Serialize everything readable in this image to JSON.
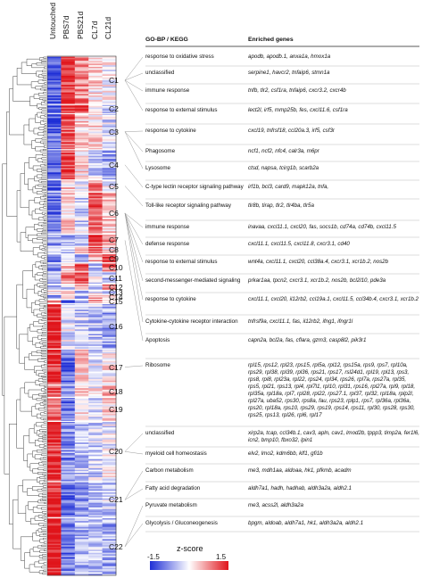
{
  "chart_data": {
    "type": "heatmap",
    "columns": [
      "Untouched",
      "PBS7d",
      "PBS21d",
      "CL7d",
      "CL21d"
    ],
    "value_range": [
      -1.5,
      1.5
    ],
    "colorscale": {
      "low": "#1f2fd6",
      "mid": "#ffffff",
      "high": "#e0141b"
    },
    "clusters": [
      {
        "name": "C1",
        "rows": 32,
        "profile": [
          -1.2,
          1.2,
          0.8,
          0.2,
          0.0
        ]
      },
      {
        "name": "C2",
        "rows": 6,
        "profile": [
          -1.3,
          1.3,
          1.0,
          0.1,
          -0.4
        ]
      },
      {
        "name": "C3",
        "rows": 24,
        "profile": [
          -1.1,
          1.1,
          0.3,
          0.2,
          -0.3
        ]
      },
      {
        "name": "C4",
        "rows": 20,
        "profile": [
          -1.2,
          1.2,
          0.2,
          -0.3,
          -0.6
        ]
      },
      {
        "name": "C5",
        "rows": 8,
        "profile": [
          -1.0,
          0.3,
          -0.1,
          0.8,
          0.0
        ]
      },
      {
        "name": "C6",
        "rows": 28,
        "profile": [
          -1.0,
          0.2,
          -0.3,
          1.0,
          0.4
        ]
      },
      {
        "name": "C7",
        "rows": 8,
        "profile": [
          -0.7,
          -0.6,
          -0.3,
          1.4,
          0.6
        ]
      },
      {
        "name": "C8",
        "rows": 5,
        "profile": [
          -0.5,
          -0.5,
          0.9,
          1.2,
          0.2
        ]
      },
      {
        "name": "C9",
        "rows": 6,
        "profile": [
          -0.9,
          -0.3,
          -0.6,
          0.4,
          1.3
        ]
      },
      {
        "name": "C10",
        "rows": 6,
        "profile": [
          -0.8,
          0.4,
          1.1,
          -0.3,
          0.9
        ]
      },
      {
        "name": "C11",
        "rows": 8,
        "profile": [
          -0.6,
          0.8,
          1.1,
          -0.2,
          -0.6
        ]
      },
      {
        "name": "C12",
        "rows": 4,
        "profile": [
          -0.4,
          -0.2,
          0.6,
          -0.6,
          1.0
        ]
      },
      {
        "name": "C13",
        "rows": 3,
        "profile": [
          0.2,
          0.9,
          -0.8,
          0.0,
          -0.5
        ]
      },
      {
        "name": "C14",
        "rows": 3,
        "profile": [
          -0.8,
          0.4,
          -0.6,
          0.8,
          0.6
        ]
      },
      {
        "name": "C15",
        "rows": 3,
        "profile": [
          0.6,
          -1.0,
          -0.4,
          0.9,
          0.2
        ]
      },
      {
        "name": "C16",
        "rows": 30,
        "profile": [
          1.4,
          -0.2,
          -0.3,
          -0.4,
          -0.6
        ]
      },
      {
        "name": "C17",
        "rows": 24,
        "profile": [
          1.3,
          -1.0,
          0.3,
          -0.2,
          0.1
        ]
      },
      {
        "name": "C18",
        "rows": 8,
        "profile": [
          1.2,
          -0.6,
          0.2,
          0.0,
          0.4
        ]
      },
      {
        "name": "C19",
        "rows": 16,
        "profile": [
          1.0,
          -1.1,
          0.2,
          -0.4,
          0.3
        ]
      },
      {
        "name": "C20",
        "rows": 40,
        "profile": [
          1.3,
          -0.8,
          -0.4,
          -0.3,
          -0.1
        ]
      },
      {
        "name": "C21",
        "rows": 24,
        "profile": [
          1.4,
          -1.0,
          -0.7,
          -0.5,
          -0.3
        ]
      },
      {
        "name": "C22",
        "rows": 38,
        "profile": [
          1.5,
          -1.0,
          -0.6,
          -0.4,
          -0.6
        ]
      }
    ],
    "colorbar": {
      "title": "z-score",
      "min_label": "-1.5",
      "max_label": "1.5"
    }
  },
  "table": {
    "header_term": "GO-BP / KEGG",
    "header_genes": "Enriched genes",
    "rows": [
      {
        "term": "response to oxidative stress",
        "genes": "apodb, apodb.1, anxa1a, hmox1a"
      },
      {
        "term": "unclassified",
        "genes": "serpine1, havcr2, tnfaip6, stmn1a"
      },
      {
        "term": "immune response",
        "genes": "tnfb, tlr2, csf1ra, tnfaip6, cxcr3.2, cxcr4b"
      },
      {
        "term": "response to external stimulus",
        "genes": "lect2l, irf5, mmp25b, fes, cxcl11.6, csf1ra"
      },
      {
        "term": "response to cytokine",
        "genes": "cxcl19, tnfrsf18, ccl20a.3, irf5, csf3r"
      },
      {
        "term": "Phagosome",
        "genes": "ncf1, ncf2, nfc4, calr3a, m6pr"
      },
      {
        "term": "Lysosome",
        "genes": "ctsd, napsa, tcirg1b, scarb2a"
      },
      {
        "term": "C-type lectin receptor signaling pathway",
        "genes": "irf1b, bcl3, card9, mapk12a, tnfa,"
      },
      {
        "term": "Toll-like receptor signaling pathway",
        "genes": "tlr8b, tirap, tlr2, tlr4ba, tlr5a"
      },
      {
        "term": "immune response",
        "genes": "inavaa, cxcl11.1, cxcl20, fas, socs1b, cd74a, cd74b, cxcl11.5"
      },
      {
        "term": "defense response",
        "genes": "cxcl11.1, cxcl11.5, cxcl11.8, cxcr3.1, cd40"
      },
      {
        "term": "response to external stimulus",
        "genes": "wnt4a, cxcl11.1, cxcl20, ccl38a.4, cxcr3.1, xcr1b.2, nos2b"
      },
      {
        "term": "second-messenger-mediated signaling",
        "genes": "prkar1aa, tpcn2, cxcr3.1, xcr1b.2, nos2b, bcl2l10, pde3a"
      },
      {
        "term": "response to cytokine",
        "genes": "cxcl11.1, cxcl20, il12rb2, ccl19a.1, cxcl11.5, ccl34b.4, cxcr3.1, xcr1b.2"
      },
      {
        "term": "Cytokine-cytokine receptor interaction",
        "genes": "tnfrsf9a, cxcl11.1, fas, il12rb2, ifng1, ifngr1l"
      },
      {
        "term": "Apoptosis",
        "genes": "capn2a, bcl2a, fas, cflara, gzm3, casp8l2, pik3r1"
      },
      {
        "term": "Ribosome",
        "genes": "rpl15, rps12, rpl23, rps15, rpl5a, rpl12, rps15a, rps9, rps7, rpl10a, rps29, rpl38, rpl39, rpl36, rps21, rps17, rsl24d1, rpl19, rpl13, rps3, rps8, rpl8, rpl23a, rpl22, rps24, rpl34, rps26, rpl7a, rps27a, rpl35, rps5, rpl21, rps13, rpl4, rpl7l1, rpl10, rpl31, rps16, rpl27a, rpl9, rpl18, rpl35a, rpl18a, rpl7, rpl28, rpl22, rps27.1, rpl37, rpl32, rpl18a, rplp2l, rpl27a, uba52, rps30, rps8a, fau, rps23, rplp1, rps7, rpl36a, rpl36a, rps20, rpl18a, rps10, rps29, rps19, rps14, rps11, rpl30, rps28, rps30, rps25, rps13, rpl26, rpl6, rpl17"
      },
      {
        "term": "unclassified",
        "genes": "xirp2a, tcap, ccl34b.1, cav3, apln, cav1, lmod2b, tppp3, timp2a, fer1l6, icn2, bmp10, fbxo32, lpin1"
      },
      {
        "term": "myeloid cell homeostasis",
        "genes": "elv2, lmo2, kdm6bb, klf1, gfi1b"
      },
      {
        "term": "Carbon metabolism",
        "genes": "me3, mdh1aa, aldoaa, hk1, pfkmb, acadm"
      },
      {
        "term": "Fatty acid degradation",
        "genes": "aldh7a1, hadh, hadhab, aldh3a2a, aldh2.1"
      },
      {
        "term": "Pyruvate metabolism",
        "genes": "me3, acss2l, aldh3a2a"
      },
      {
        "term": "Glycolysis / Gluconeogenesis",
        "genes": "bpgm, aldoab, aldh7a1, hk1, aldh3a2a, aldh2.1"
      }
    ]
  }
}
